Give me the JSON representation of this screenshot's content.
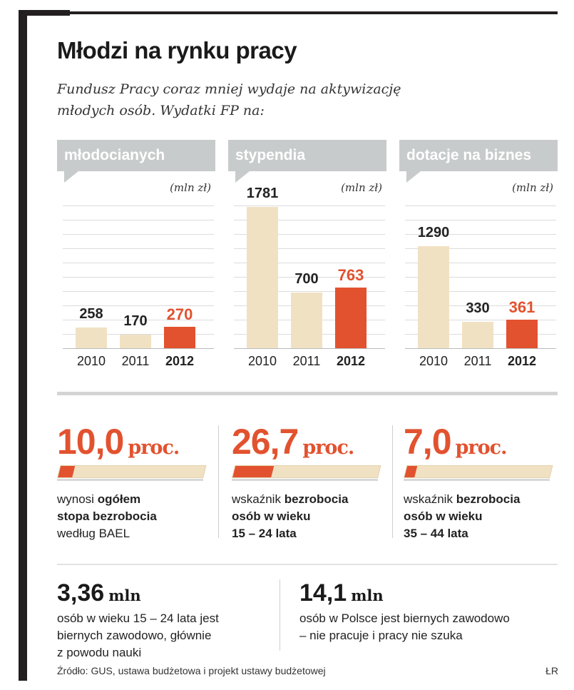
{
  "title": "Młodzi na rynku pracy",
  "subtitle_line1": "Fundusz Pracy coraz mniej wydaje na aktywizację",
  "subtitle_line2": "młodych osób. Wydatki FP na:",
  "colors": {
    "bar_light": "#f1e1c3",
    "bar_accent": "#e2522f",
    "tab_gray": "#c8cbcb"
  },
  "chart_data": [
    {
      "type": "bar",
      "title": "młodocianych",
      "unit": "(mln zł)",
      "categories": [
        "2010",
        "2011",
        "2012"
      ],
      "values": [
        258,
        170,
        270
      ],
      "value_labels": [
        "258",
        "170",
        "270"
      ],
      "ylim": [
        0,
        1800
      ]
    },
    {
      "type": "bar",
      "title": "stypendia",
      "unit": "(mln zł)",
      "categories": [
        "2010",
        "2011",
        "2012"
      ],
      "values": [
        1781,
        700,
        763
      ],
      "value_labels": [
        "1781",
        "700",
        "763"
      ],
      "ylim": [
        0,
        1800
      ]
    },
    {
      "type": "bar",
      "title": "dotacje na biznes",
      "unit": "(mln zł)",
      "categories": [
        "2010",
        "2011",
        "2012"
      ],
      "values": [
        1290,
        330,
        361
      ],
      "value_labels": [
        "1290",
        "330",
        "361"
      ],
      "ylim": [
        0,
        1800
      ]
    }
  ],
  "stats": [
    {
      "value": "10,0",
      "suffix": "proc.",
      "percent": 10.0,
      "line1_plain": "wynosi ",
      "line1_bold": "ogółem",
      "line2_plain": "",
      "line2_bold": "stopa bezrobocia",
      "line3": "według BAEL"
    },
    {
      "value": "26,7",
      "suffix": "proc.",
      "percent": 26.7,
      "line1_plain": "wskaźnik ",
      "line1_bold": "bezrobocia",
      "line2_plain": "",
      "line2_bold": "osób w wieku",
      "line3_bold": "15 – 24 lata"
    },
    {
      "value": "7,0",
      "suffix": "proc.",
      "percent": 7.0,
      "line1_plain": "wskaźnik ",
      "line1_bold": "bezrobocia",
      "line2_plain": "",
      "line2_bold": "osób w wieku",
      "line3_bold": "35 – 44 lata"
    }
  ],
  "millions": [
    {
      "value": "3,36",
      "suffix": "mln",
      "line1": "osób w wieku 15 – 24 lata jest",
      "line2": "biernych zawodowo, głównie",
      "line3": "z powodu nauki"
    },
    {
      "value": "14,1",
      "suffix": "mln",
      "line1": "osób w Polsce jest biernych zawodowo",
      "line2": "– nie pracuje i pracy nie szuka"
    }
  ],
  "source": "Źródło: GUS, ustawa budżetowa i projekt ustawy budżetowej",
  "author": "ŁR"
}
